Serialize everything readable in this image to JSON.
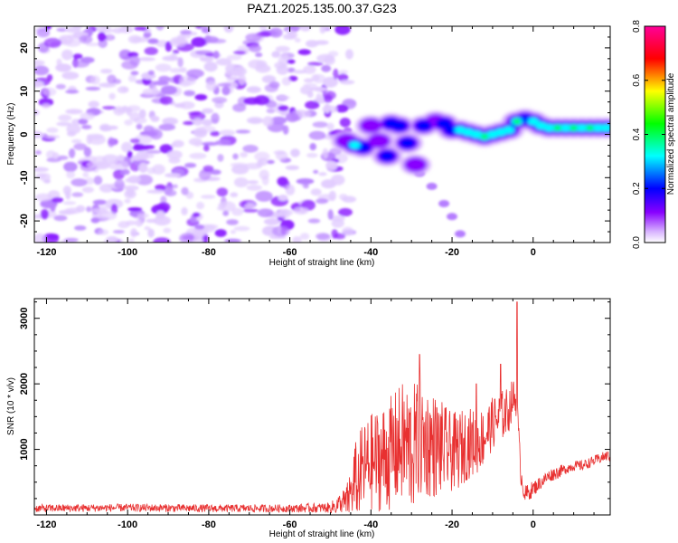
{
  "title": "PAZ1.2025.135.00.37.G23",
  "chart_data": [
    {
      "type": "heatmap",
      "xlabel": "Height of straight line (km)",
      "ylabel": "Frequency (Hz)",
      "xlim": [
        -123,
        19
      ],
      "ylim": [
        -25,
        25
      ],
      "xticks": [
        -120,
        -100,
        -80,
        -60,
        -40,
        -20,
        0
      ],
      "yticks": [
        -20,
        -10,
        0,
        10,
        20
      ],
      "colorbar": {
        "label": "Normalized spectral amplitude",
        "range": [
          0,
          0.8
        ],
        "ticks": [
          "0.0",
          "0.2",
          "0.4",
          "0.6",
          "0.8"
        ],
        "colormap": [
          "#ffffff",
          "#d8b4ff",
          "#8800ff",
          "#0000ff",
          "#00ffff",
          "#00ff00",
          "#ffff00",
          "#ff0000",
          "#ff0099"
        ]
      },
      "noise_region_km": [
        -123,
        -45
      ],
      "signal_track": [
        {
          "x": -46,
          "y": -1.5,
          "a": 0.22
        },
        {
          "x": -44,
          "y": -2.5,
          "a": 0.38
        },
        {
          "x": -42,
          "y": -3,
          "a": 0.32
        },
        {
          "x": -40,
          "y": 2,
          "a": 0.18
        },
        {
          "x": -38,
          "y": -1.5,
          "a": 0.22
        },
        {
          "x": -36,
          "y": -5,
          "a": 0.3
        },
        {
          "x": -35,
          "y": 2.5,
          "a": 0.28
        },
        {
          "x": -33,
          "y": 2,
          "a": 0.3
        },
        {
          "x": -31,
          "y": -2,
          "a": 0.24
        },
        {
          "x": -29,
          "y": -7,
          "a": 0.18
        },
        {
          "x": -27,
          "y": 2,
          "a": 0.25
        },
        {
          "x": -24,
          "y": 3,
          "a": 0.22
        },
        {
          "x": -22,
          "y": 2.5,
          "a": 0.3
        },
        {
          "x": -20,
          "y": 1,
          "a": 0.35
        },
        {
          "x": -18,
          "y": 1,
          "a": 0.4
        },
        {
          "x": -16,
          "y": 0.5,
          "a": 0.48
        },
        {
          "x": -14,
          "y": 0,
          "a": 0.45
        },
        {
          "x": -12,
          "y": -0.5,
          "a": 0.5
        },
        {
          "x": -10,
          "y": 0,
          "a": 0.4
        },
        {
          "x": -8,
          "y": 0.5,
          "a": 0.45
        },
        {
          "x": -6,
          "y": 1,
          "a": 0.42
        },
        {
          "x": -4,
          "y": 3,
          "a": 0.5
        },
        {
          "x": -2,
          "y": 3.5,
          "a": 0.35
        },
        {
          "x": 0,
          "y": 3,
          "a": 0.38
        },
        {
          "x": 2,
          "y": 2,
          "a": 0.48
        },
        {
          "x": 4,
          "y": 1.5,
          "a": 0.45
        },
        {
          "x": 6,
          "y": 1.5,
          "a": 0.52
        },
        {
          "x": 8,
          "y": 1.5,
          "a": 0.48
        },
        {
          "x": 10,
          "y": 1.5,
          "a": 0.55
        },
        {
          "x": 12,
          "y": 1.5,
          "a": 0.42
        },
        {
          "x": 14,
          "y": 1.5,
          "a": 0.5
        },
        {
          "x": 16,
          "y": 1.5,
          "a": 0.45
        },
        {
          "x": 18,
          "y": 1.5,
          "a": 0.4
        }
      ],
      "branch_track": [
        {
          "x": -28,
          "y": -9
        },
        {
          "x": -25,
          "y": -12
        },
        {
          "x": -22,
          "y": -16
        },
        {
          "x": -20,
          "y": -19
        },
        {
          "x": -18,
          "y": -23
        }
      ]
    },
    {
      "type": "line",
      "xlabel": "Height of straight line (km)",
      "ylabel": "SNR (10 * v/v)",
      "xlim": [
        -123,
        19
      ],
      "ylim": [
        0,
        3300
      ],
      "xticks": [
        -120,
        -100,
        -80,
        -60,
        -40,
        -20,
        0
      ],
      "yticks": [
        1000,
        2000,
        3000
      ],
      "color": "#e83030",
      "series": [
        {
          "x": [
            -123,
            -100,
            -80,
            -60,
            -50,
            -46,
            -44,
            -42,
            -40,
            -38,
            -36,
            -34,
            -32,
            -30,
            -28,
            -26,
            -24,
            -22,
            -20,
            -18,
            -16,
            -14,
            -12,
            -10,
            -8,
            -6,
            -5,
            -4,
            -3,
            -2,
            0,
            2,
            4,
            6,
            8,
            10,
            12,
            14,
            16,
            18,
            19
          ],
          "y": [
            100,
            110,
            100,
            100,
            110,
            200,
            500,
            700,
            800,
            850,
            900,
            1000,
            1100,
            1000,
            1150,
            1100,
            1050,
            1000,
            950,
            1000,
            1100,
            1100,
            1200,
            1400,
            1500,
            1600,
            1800,
            1700,
            600,
            300,
            400,
            500,
            600,
            650,
            700,
            750,
            750,
            800,
            850,
            900,
            900
          ],
          "noise": [
            60,
            60,
            60,
            60,
            80,
            250,
            600,
            700,
            750,
            800,
            850,
            900,
            950,
            1000,
            900,
            850,
            800,
            700,
            600,
            600,
            550,
            500,
            450,
            400,
            400,
            350,
            300,
            200,
            150,
            150,
            120,
            100,
            100,
            100,
            80,
            80,
            80,
            80,
            80,
            80,
            80
          ]
        }
      ],
      "peaks": [
        {
          "x": -4,
          "y": 3250
        },
        {
          "x": -28,
          "y": 2450
        },
        {
          "x": -8,
          "y": 2300
        },
        {
          "x": -14,
          "y": 2000
        }
      ]
    }
  ]
}
